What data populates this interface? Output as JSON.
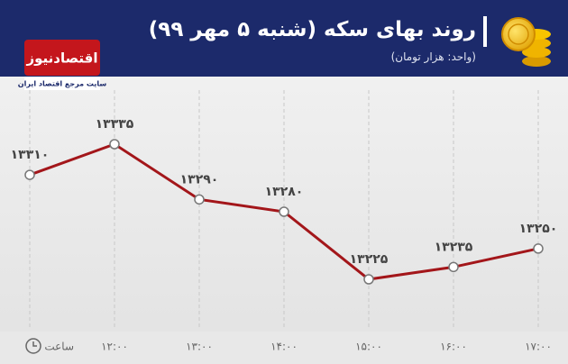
{
  "header": {
    "logo": "اقتصادنیوز",
    "tagline": "سایت مرجع اقتصاد ایران"
  },
  "chart_data": {
    "type": "line",
    "title": "روند بهای سکه (شنبه ۵ مهر ۹۹)",
    "subtitle": "(واحد: هزار تومان)",
    "x_label": "ساعت",
    "categories": [
      null,
      "۱۲:۰۰",
      "۱۳:۰۰",
      "۱۴:۰۰",
      "۱۵:۰۰",
      "۱۶:۰۰",
      "۱۷:۰۰"
    ],
    "values": [
      13310,
      13335,
      13290,
      13280,
      13225,
      13235,
      13250
    ],
    "value_labels": [
      "۱۳۳۱۰",
      "۱۳۳۳۵",
      "۱۳۲۹۰",
      "۱۳۲۸۰",
      "۱۳۲۲۵",
      "۱۳۲۳۵",
      "۱۳۲۵۰"
    ],
    "color": "#a3161a",
    "grid": true
  }
}
